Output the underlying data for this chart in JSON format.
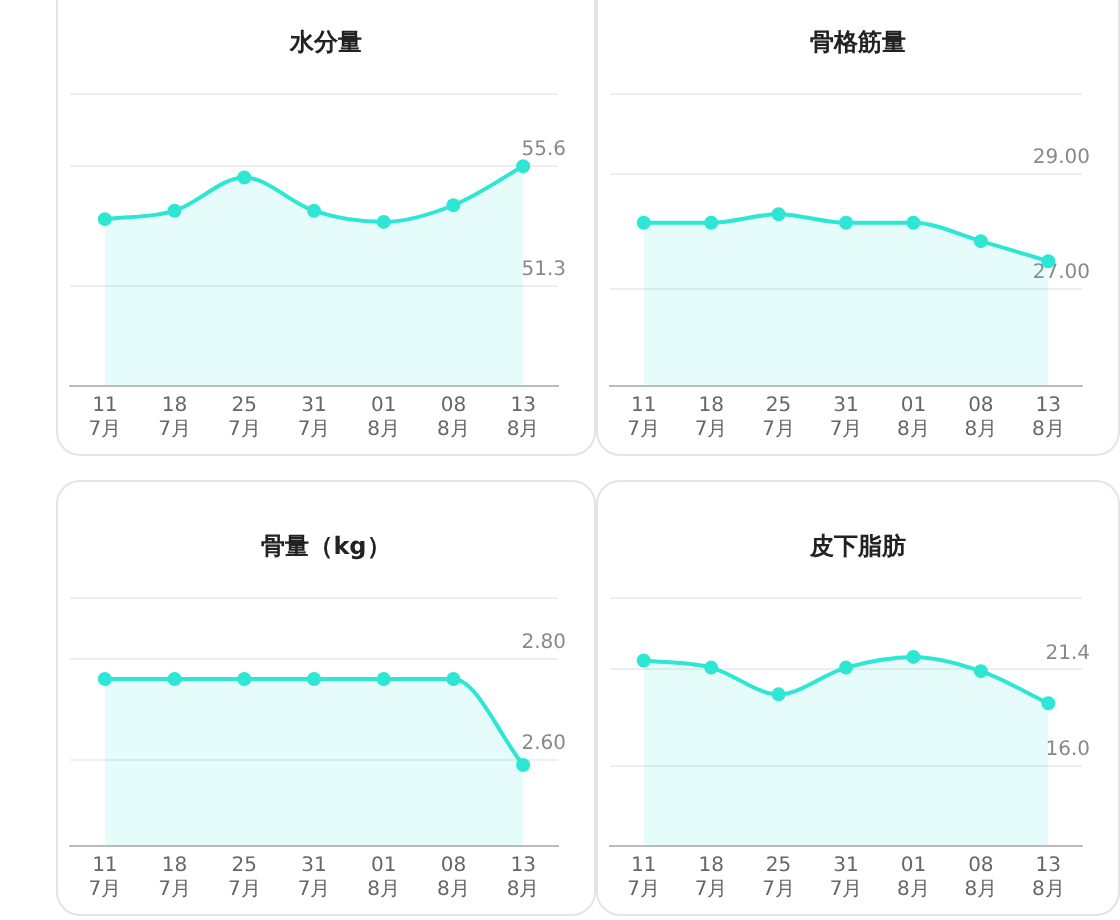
{
  "chart_data": [
    {
      "type": "area",
      "title": "水分量",
      "categories": [
        "11\n7月",
        "18\n7月",
        "25\n7月",
        "31\n7月",
        "01\n8月",
        "08\n8月",
        "13\n8月"
      ],
      "series": [
        {
          "color": "#2ee6d4",
          "values": [
            53.7,
            54.0,
            55.2,
            54.0,
            53.6,
            54.2,
            55.6
          ]
        }
      ],
      "ylim": [
        47.7,
        58.2
      ],
      "yticks": [
        51.3,
        55.6,
        {
          "value": 58.2,
          "label": null
        }
      ],
      "grid": "y",
      "legend": false,
      "marker": "circle",
      "line_style": "solid"
    },
    {
      "type": "area",
      "title": "骨格筋量",
      "categories": [
        "11\n7月",
        "18\n7月",
        "25\n7月",
        "31\n7月",
        "01\n8月",
        "08\n8月",
        "13\n8月"
      ],
      "series": [
        {
          "color": "#2ee6d4",
          "values": [
            28.15,
            28.15,
            28.3,
            28.15,
            28.15,
            27.83,
            27.48
          ]
        }
      ],
      "ylim": [
        25.3,
        30.4
      ],
      "yticks": [
        {
          "value": 27,
          "label": "27.00"
        },
        {
          "value": 29,
          "label": "29.00"
        },
        {
          "value": 30.4,
          "label": null
        }
      ],
      "grid": "y",
      "legend": false,
      "marker": "circle",
      "line_style": "solid"
    },
    {
      "type": "area",
      "title": "骨量（kg）",
      "categories": [
        "11\n7月",
        "18\n7月",
        "25\n7月",
        "31\n7月",
        "01\n8月",
        "08\n8月",
        "13\n8月"
      ],
      "series": [
        {
          "color": "#2ee6d4",
          "values": [
            2.76,
            2.76,
            2.76,
            2.76,
            2.76,
            2.76,
            2.59
          ]
        }
      ],
      "ylim": [
        2.43,
        2.92
      ],
      "yticks": [
        {
          "value": 2.6,
          "label": "2.60"
        },
        {
          "value": 2.8,
          "label": "2.80"
        },
        {
          "value": 2.92,
          "label": null
        }
      ],
      "grid": "y",
      "legend": false,
      "marker": "circle",
      "line_style": "solid"
    },
    {
      "type": "area",
      "title": "皮下脂肪",
      "categories": [
        "11\n7月",
        "18\n7月",
        "25\n7月",
        "31\n7月",
        "01\n8月",
        "08\n8月",
        "13\n8月"
      ],
      "series": [
        {
          "color": "#2ee6d4",
          "values": [
            21.9,
            21.5,
            20.0,
            21.5,
            22.1,
            21.3,
            19.5
          ]
        }
      ],
      "ylim": [
        11.5,
        25.4
      ],
      "yticks": [
        {
          "value": 16,
          "label": "16.0"
        },
        21.4,
        {
          "value": 25.4,
          "label": null
        }
      ],
      "grid": "y",
      "legend": false,
      "marker": "circle",
      "line_style": "solid"
    }
  ]
}
